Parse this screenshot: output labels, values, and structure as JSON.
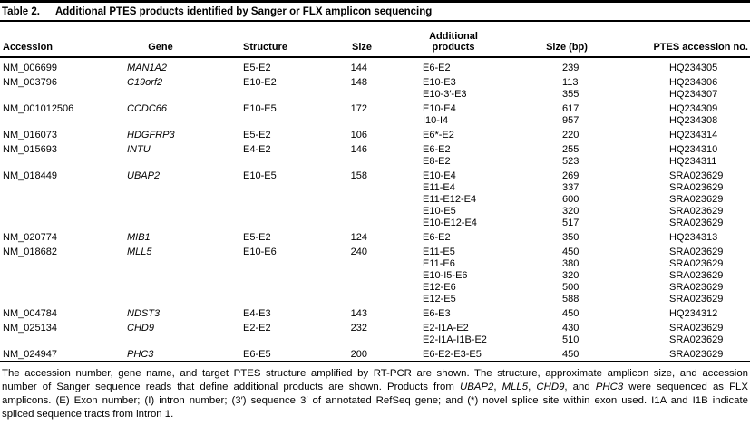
{
  "title": {
    "label": "Table 2.",
    "text": "Additional PTES products identified by Sanger or FLX amplicon sequencing"
  },
  "columns": {
    "accession": "Accession",
    "gene": "Gene",
    "structure": "Structure",
    "size": "Size",
    "additional_line1": "Additional",
    "additional_line2": "products",
    "size_bp": "Size (bp)",
    "ptes": "PTES accession no."
  },
  "table": {
    "groups": [
      {
        "accession": "NM_006699",
        "gene": "MAN1A2",
        "structure": "E5-E2",
        "size": "144",
        "products": [
          {
            "product": "E6-E2",
            "size_bp": "239",
            "accession_no": "HQ234305"
          }
        ]
      },
      {
        "accession": "NM_003796",
        "gene": "C19orf2",
        "structure": "E10-E2",
        "size": "148",
        "products": [
          {
            "product": "E10-E3",
            "size_bp": "113",
            "accession_no": "HQ234306"
          },
          {
            "product": "E10-3′-E3",
            "size_bp": "355",
            "accession_no": "HQ234307"
          }
        ]
      },
      {
        "accession": "NM_001012506",
        "gene": "CCDC66",
        "structure": "E10-E5",
        "size": "172",
        "products": [
          {
            "product": "E10-E4",
            "size_bp": "617",
            "accession_no": "HQ234309"
          },
          {
            "product": "I10-I4",
            "size_bp": "957",
            "accession_no": "HQ234308"
          }
        ]
      },
      {
        "accession": "NM_016073",
        "gene": "HDGFRP3",
        "structure": "E5-E2",
        "size": "106",
        "products": [
          {
            "product": "E6*-E2",
            "size_bp": "220",
            "accession_no": "HQ234314"
          }
        ]
      },
      {
        "accession": "NM_015693",
        "gene": "INTU",
        "structure": "E4-E2",
        "size": "146",
        "products": [
          {
            "product": "E6-E2",
            "size_bp": "255",
            "accession_no": "HQ234310"
          },
          {
            "product": "E8-E2",
            "size_bp": "523",
            "accession_no": "HQ234311"
          }
        ]
      },
      {
        "accession": "NM_018449",
        "gene": "UBAP2",
        "structure": "E10-E5",
        "size": "158",
        "products": [
          {
            "product": "E10-E4",
            "size_bp": "269",
            "accession_no": "SRA023629"
          },
          {
            "product": "E11-E4",
            "size_bp": "337",
            "accession_no": "SRA023629"
          },
          {
            "product": "E11-E12-E4",
            "size_bp": "600",
            "accession_no": "SRA023629"
          },
          {
            "product": "E10-E5",
            "size_bp": "320",
            "accession_no": "SRA023629"
          },
          {
            "product": "E10-E12-E4",
            "size_bp": "517",
            "accession_no": "SRA023629"
          }
        ]
      },
      {
        "accession": "NM_020774",
        "gene": "MIB1",
        "structure": "E5-E2",
        "size": "124",
        "products": [
          {
            "product": "E6-E2",
            "size_bp": "350",
            "accession_no": "HQ234313"
          }
        ]
      },
      {
        "accession": "NM_018682",
        "gene": "MLL5",
        "structure": "E10-E6",
        "size": "240",
        "products": [
          {
            "product": "E11-E5",
            "size_bp": "450",
            "accession_no": "SRA023629"
          },
          {
            "product": "E11-E6",
            "size_bp": "380",
            "accession_no": "SRA023629"
          },
          {
            "product": "E10-I5-E6",
            "size_bp": "320",
            "accession_no": "SRA023629"
          },
          {
            "product": "E12-E6",
            "size_bp": "500",
            "accession_no": "SRA023629"
          },
          {
            "product": "E12-E5",
            "size_bp": "588",
            "accession_no": "SRA023629"
          }
        ]
      },
      {
        "accession": "NM_004784",
        "gene": "NDST3",
        "structure": "E4-E3",
        "size": "143",
        "products": [
          {
            "product": "E6-E3",
            "size_bp": "450",
            "accession_no": "HQ234312"
          }
        ]
      },
      {
        "accession": "NM_025134",
        "gene": "CHD9",
        "structure": "E2-E2",
        "size": "232",
        "products": [
          {
            "product": "E2-I1A-E2",
            "size_bp": "430",
            "accession_no": "SRA023629"
          },
          {
            "product": "E2-I1A-I1B-E2",
            "size_bp": "510",
            "accession_no": "SRA023629"
          }
        ]
      },
      {
        "accession": "NM_024947",
        "gene": "PHC3",
        "structure": "E6-E5",
        "size": "200",
        "products": [
          {
            "product": "E6-E2-E3-E5",
            "size_bp": "450",
            "accession_no": "SRA023629"
          }
        ]
      }
    ]
  },
  "footnote": {
    "lines": [
      [
        {
          "t": "The accession number, gene name, and target PTES structure amplified by RT-PCR are shown. The structure, approximate amplicon size, and accession",
          "i": false
        }
      ],
      [
        {
          "t": "number of Sanger sequence reads that define additional products are shown. Products from ",
          "i": false
        },
        {
          "t": "UBAP2",
          "i": true
        },
        {
          "t": ", ",
          "i": false
        },
        {
          "t": "MLL5",
          "i": true
        },
        {
          "t": ", ",
          "i": false
        },
        {
          "t": "CHD9",
          "i": true
        },
        {
          "t": ", and ",
          "i": false
        },
        {
          "t": "PHC3",
          "i": true
        },
        {
          "t": " were sequenced as FLX",
          "i": false
        }
      ],
      [
        {
          "t": "amplicons. (E) Exon number; (I) intron number; (3′) sequence 3′ of annotated RefSeq gene; and (*) novel splice site within exon used. I1A and I1B indicate",
          "i": false
        }
      ],
      [
        {
          "t": "spliced sequence tracts from intron 1.",
          "i": false
        }
      ]
    ]
  }
}
